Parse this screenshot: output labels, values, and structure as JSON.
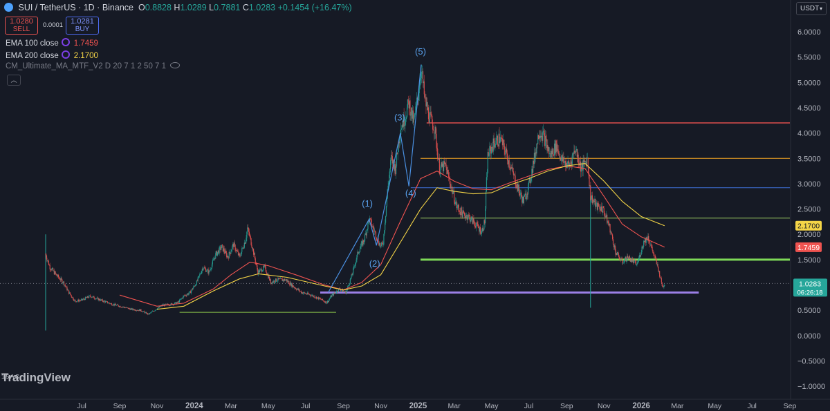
{
  "header": {
    "symbol": "SUI / TetherUS · 1D · Binance",
    "o_key": "O",
    "o_val": "0.8828",
    "h_key": "H",
    "h_val": "1.0289",
    "l_key": "L",
    "l_val": "0.7881",
    "c_key": "C",
    "c_val": "1.0283",
    "change": "+0.1454 (+16.47%)",
    "color_up": "#26a69a"
  },
  "trade": {
    "sell_price": "1.0280",
    "sell_label": "SELL",
    "buy_price": "1.0281",
    "buy_label": "BUY",
    "spread": "0.0001"
  },
  "indicators": [
    {
      "label": "EMA 100 close",
      "value": "1.7459",
      "color": "#ef5350"
    },
    {
      "label": "EMA 200 close",
      "value": "2.1700",
      "color": "#f5d547"
    },
    {
      "label": "CM_Ultimate_MA_MTF_V2 D 20 7 1 2 50 7 1"
    }
  ],
  "currency": "USDT",
  "branding": {
    "logo": "TradingView",
    "wave_icon": "1 5 A C"
  },
  "chart_data": {
    "type": "candlestick",
    "price_axis": {
      "min": -1.0,
      "max": 6.0,
      "ticks": [
        "6.0000",
        "5.5000",
        "5.0000",
        "4.5000",
        "4.0000",
        "3.5000",
        "3.0000",
        "2.5000",
        "2.0000",
        "1.5000",
        "1.0000",
        "0.5000",
        "0.0000",
        "−0.5000",
        "−1.0000"
      ],
      "tick_values": [
        6.0,
        5.5,
        5.0,
        4.5,
        4.0,
        3.5,
        3.0,
        2.5,
        2.0,
        1.5,
        1.0,
        0.5,
        0.0,
        -0.5,
        -1.0
      ]
    },
    "time_axis": {
      "labels": [
        "Jul",
        "Sep",
        "Nov",
        "2024",
        "Mar",
        "May",
        "Jul",
        "Sep",
        "Nov",
        "2025",
        "Mar",
        "May",
        "Jul",
        "Sep",
        "Nov",
        "2026",
        "Mar",
        "May",
        "Jul",
        "Sep"
      ],
      "bold": [
        "2024",
        "2025",
        "2026"
      ],
      "start": "2023-05-03",
      "end": "2026-09-01"
    },
    "price_path": [
      [
        "2023-05-03",
        1.6
      ],
      [
        "2023-05-10",
        1.35
      ],
      [
        "2023-05-20",
        1.2
      ],
      [
        "2023-06-01",
        1.05
      ],
      [
        "2023-06-10",
        0.85
      ],
      [
        "2023-06-20",
        0.68
      ],
      [
        "2023-07-01",
        0.7
      ],
      [
        "2023-07-15",
        0.78
      ],
      [
        "2023-08-01",
        0.7
      ],
      [
        "2023-08-20",
        0.62
      ],
      [
        "2023-09-05",
        0.57
      ],
      [
        "2023-09-20",
        0.52
      ],
      [
        "2023-10-05",
        0.5
      ],
      [
        "2023-10-18",
        0.42
      ],
      [
        "2023-10-28",
        0.5
      ],
      [
        "2023-11-10",
        0.6
      ],
      [
        "2023-11-25",
        0.62
      ],
      [
        "2023-12-05",
        0.65
      ],
      [
        "2023-12-15",
        0.78
      ],
      [
        "2023-12-25",
        0.85
      ],
      [
        "2024-01-05",
        1.05
      ],
      [
        "2024-01-15",
        1.35
      ],
      [
        "2024-01-25",
        1.25
      ],
      [
        "2024-02-05",
        1.6
      ],
      [
        "2024-02-15",
        1.75
      ],
      [
        "2024-02-25",
        1.55
      ],
      [
        "2024-03-05",
        1.8
      ],
      [
        "2024-03-15",
        1.55
      ],
      [
        "2024-03-25",
        1.9
      ],
      [
        "2024-03-28",
        2.12
      ],
      [
        "2024-04-05",
        1.75
      ],
      [
        "2024-04-14",
        1.25
      ],
      [
        "2024-04-25",
        1.35
      ],
      [
        "2024-05-05",
        1.05
      ],
      [
        "2024-05-15",
        1.1
      ],
      [
        "2024-05-30",
        1.1
      ],
      [
        "2024-06-10",
        0.98
      ],
      [
        "2024-06-25",
        0.85
      ],
      [
        "2024-07-10",
        0.8
      ],
      [
        "2024-07-25",
        0.72
      ],
      [
        "2024-08-05",
        0.65
      ],
      [
        "2024-08-12",
        0.78
      ],
      [
        "2024-08-25",
        0.92
      ],
      [
        "2024-09-05",
        0.85
      ],
      [
        "2024-09-15",
        1.2
      ],
      [
        "2024-09-25",
        1.65
      ],
      [
        "2024-10-05",
        1.9
      ],
      [
        "2024-10-13",
        2.3
      ],
      [
        "2024-10-22",
        2.05
      ],
      [
        "2024-11-01",
        1.75
      ],
      [
        "2024-11-05",
        1.85
      ],
      [
        "2024-11-12",
        2.85
      ],
      [
        "2024-11-18",
        3.5
      ],
      [
        "2024-11-25",
        3.3
      ],
      [
        "2024-12-03",
        4.1
      ],
      [
        "2024-12-10",
        4.3
      ],
      [
        "2024-12-17",
        4.6
      ],
      [
        "2024-12-25",
        4.2
      ],
      [
        "2025-01-01",
        4.75
      ],
      [
        "2025-01-06",
        5.3
      ],
      [
        "2025-01-12",
        4.65
      ],
      [
        "2025-01-20",
        4.3
      ],
      [
        "2025-01-28",
        4.1
      ],
      [
        "2025-02-05",
        3.3
      ],
      [
        "2025-02-15",
        3.35
      ],
      [
        "2025-02-25",
        2.9
      ],
      [
        "2025-03-05",
        2.55
      ],
      [
        "2025-03-15",
        2.4
      ],
      [
        "2025-03-25",
        2.35
      ],
      [
        "2025-04-05",
        2.2
      ],
      [
        "2025-04-15",
        2.05
      ],
      [
        "2025-04-20",
        2.25
      ],
      [
        "2025-04-25",
        3.55
      ],
      [
        "2025-05-05",
        3.8
      ],
      [
        "2025-05-15",
        3.9
      ],
      [
        "2025-05-25",
        3.6
      ],
      [
        "2025-06-05",
        3.2
      ],
      [
        "2025-06-15",
        2.85
      ],
      [
        "2025-06-22",
        2.65
      ],
      [
        "2025-07-01",
        2.95
      ],
      [
        "2025-07-10",
        3.5
      ],
      [
        "2025-07-18",
        4.05
      ],
      [
        "2025-07-25",
        3.95
      ],
      [
        "2025-08-05",
        3.55
      ],
      [
        "2025-08-15",
        3.75
      ],
      [
        "2025-08-25",
        3.45
      ],
      [
        "2025-09-05",
        3.35
      ],
      [
        "2025-09-15",
        3.7
      ],
      [
        "2025-09-25",
        3.3
      ],
      [
        "2025-10-05",
        3.5
      ],
      [
        "2025-10-10",
        2.75
      ],
      [
        "2025-10-20",
        2.55
      ],
      [
        "2025-10-30",
        2.5
      ],
      [
        "2025-11-10",
        2.15
      ],
      [
        "2025-11-20",
        1.65
      ],
      [
        "2025-12-01",
        1.45
      ],
      [
        "2025-12-10",
        1.55
      ],
      [
        "2025-12-25",
        1.4
      ],
      [
        "2026-01-05",
        1.85
      ],
      [
        "2026-01-12",
        1.95
      ],
      [
        "2026-01-20",
        1.65
      ],
      [
        "2026-01-28",
        1.35
      ],
      [
        "2026-02-05",
        0.95
      ],
      [
        "2026-02-08",
        1.03
      ]
    ],
    "ema_100": [
      [
        "2023-09-01",
        0.8
      ],
      [
        "2023-11-01",
        0.58
      ],
      [
        "2023-12-15",
        0.64
      ],
      [
        "2024-02-01",
        0.92
      ],
      [
        "2024-03-01",
        1.2
      ],
      [
        "2024-04-01",
        1.45
      ],
      [
        "2024-05-01",
        1.38
      ],
      [
        "2024-06-15",
        1.2
      ],
      [
        "2024-08-01",
        1.0
      ],
      [
        "2024-09-01",
        0.9
      ],
      [
        "2024-10-01",
        1.05
      ],
      [
        "2024-11-01",
        1.4
      ],
      [
        "2024-12-01",
        2.2
      ],
      [
        "2025-01-05",
        3.1
      ],
      [
        "2025-02-01",
        3.25
      ],
      [
        "2025-03-01",
        3.05
      ],
      [
        "2025-04-01",
        2.9
      ],
      [
        "2025-05-01",
        2.88
      ],
      [
        "2025-06-01",
        3.02
      ],
      [
        "2025-07-01",
        3.15
      ],
      [
        "2025-08-01",
        3.28
      ],
      [
        "2025-09-01",
        3.35
      ],
      [
        "2025-10-01",
        3.3
      ],
      [
        "2025-11-01",
        2.75
      ],
      [
        "2025-12-01",
        2.2
      ],
      [
        "2026-01-01",
        1.95
      ],
      [
        "2026-02-08",
        1.7459
      ]
    ],
    "ema_200": [
      [
        "2023-11-01",
        0.52
      ],
      [
        "2023-12-15",
        0.58
      ],
      [
        "2024-02-01",
        0.88
      ],
      [
        "2024-03-15",
        1.12
      ],
      [
        "2024-04-15",
        1.22
      ],
      [
        "2024-06-01",
        1.15
      ],
      [
        "2024-08-01",
        0.98
      ],
      [
        "2024-09-01",
        0.9
      ],
      [
        "2024-10-01",
        0.98
      ],
      [
        "2024-11-01",
        1.2
      ],
      [
        "2024-12-01",
        1.8
      ],
      [
        "2025-01-05",
        2.5
      ],
      [
        "2025-02-01",
        2.92
      ],
      [
        "2025-03-01",
        2.85
      ],
      [
        "2025-04-01",
        2.8
      ],
      [
        "2025-05-01",
        2.82
      ],
      [
        "2025-06-01",
        2.98
      ],
      [
        "2025-07-01",
        3.1
      ],
      [
        "2025-08-01",
        3.25
      ],
      [
        "2025-09-01",
        3.35
      ],
      [
        "2025-10-01",
        3.4
      ],
      [
        "2025-11-01",
        3.05
      ],
      [
        "2025-12-01",
        2.65
      ],
      [
        "2026-01-01",
        2.35
      ],
      [
        "2026-02-08",
        2.17
      ]
    ],
    "horizontal_lines": [
      {
        "price": 4.2,
        "from": "2025-01-15",
        "to": "2026-09-01",
        "color": "#ef5350",
        "width": 1.3
      },
      {
        "price": 3.5,
        "from": "2025-01-05",
        "to": "2026-09-01",
        "color": "#f5a623",
        "width": 1
      },
      {
        "price": 2.92,
        "from": "2024-12-20",
        "to": "2026-09-01",
        "color": "#3f6fd6",
        "width": 1
      },
      {
        "price": 2.32,
        "from": "2025-01-05",
        "to": "2026-09-01",
        "color": "#9ccc65",
        "width": 1
      },
      {
        "price": 1.5,
        "from": "2025-01-05",
        "to": "2026-09-01",
        "color": "#7ed957",
        "width": 3
      },
      {
        "price": 0.85,
        "from": "2024-07-25",
        "to": "2026-04-05",
        "color": "#9b7fe6",
        "width": 3
      },
      {
        "price": 0.46,
        "from": "2023-12-08",
        "to": "2024-08-20",
        "color": "#8bc34a",
        "width": 1
      }
    ],
    "wave_labels": [
      {
        "text": "(1)",
        "date": "2024-10-10",
        "price": 2.55
      },
      {
        "text": "(2)",
        "date": "2024-10-22",
        "price": 1.36
      },
      {
        "text": "(3)",
        "date": "2024-12-02",
        "price": 4.25
      },
      {
        "text": "(4)",
        "date": "2024-12-20",
        "price": 2.75
      },
      {
        "text": "(5)",
        "date": "2025-01-05",
        "price": 5.55
      }
    ],
    "wave_path": [
      [
        "2024-08-07",
        0.85
      ],
      [
        "2024-10-13",
        2.3
      ],
      [
        "2024-10-25",
        1.78
      ],
      [
        "2024-12-03",
        4.0
      ],
      [
        "2024-12-17",
        2.95
      ],
      [
        "2025-01-06",
        5.35
      ]
    ],
    "wick_spikes": [
      {
        "date": "2023-05-03",
        "high": 2.0,
        "low": 0.1
      },
      {
        "date": "2025-10-10",
        "high": 2.75,
        "low": 0.55
      }
    ],
    "last_price": {
      "value": 1.0283,
      "label": "1.0283",
      "countdown": "06:26:18"
    },
    "price_tags": [
      {
        "value": 2.17,
        "label": "2.1700",
        "bg": "#f5d547",
        "fg": "#131722"
      },
      {
        "value": 1.7459,
        "label": "1.7459",
        "bg": "#ef5350",
        "fg": "#ffffff"
      }
    ]
  }
}
